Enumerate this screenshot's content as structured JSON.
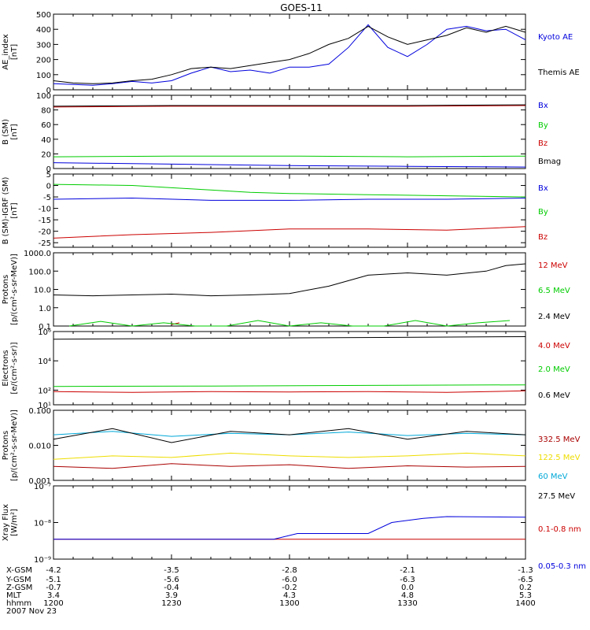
{
  "title": "GOES-11",
  "chart_data": [
    {
      "id": "ae",
      "type": "line",
      "ylabel": [
        "AE_index",
        "[nT]"
      ],
      "scale": "linear",
      "ylim": [
        0,
        500
      ],
      "yticks": [
        0,
        100,
        200,
        300,
        400,
        500
      ],
      "tick_labels": [
        "0",
        "100",
        "200",
        "300",
        "400",
        "500"
      ],
      "series": [
        {
          "name": "Kyoto AE",
          "color": "#0000dd",
          "x": [
            0,
            5,
            10,
            15,
            20,
            25,
            30,
            35,
            40,
            45,
            50,
            55,
            60,
            65,
            70,
            75,
            80,
            85,
            90,
            95,
            100,
            105,
            110,
            115,
            120
          ],
          "y": [
            40,
            35,
            30,
            40,
            55,
            45,
            60,
            110,
            150,
            120,
            130,
            110,
            150,
            150,
            170,
            280,
            430,
            280,
            220,
            300,
            400,
            420,
            390,
            400,
            330
          ]
        },
        {
          "name": "Themis AE",
          "color": "#000000",
          "x": [
            0,
            5,
            10,
            15,
            20,
            25,
            30,
            35,
            40,
            45,
            50,
            55,
            60,
            65,
            70,
            75,
            80,
            85,
            90,
            95,
            100,
            105,
            110,
            115,
            120
          ],
          "y": [
            60,
            45,
            40,
            45,
            60,
            70,
            100,
            140,
            150,
            140,
            160,
            180,
            200,
            240,
            300,
            340,
            420,
            350,
            300,
            330,
            360,
            410,
            380,
            420,
            380
          ]
        }
      ]
    },
    {
      "id": "bsm",
      "type": "line",
      "ylabel": [
        "B (SM)",
        "[nT]"
      ],
      "scale": "linear",
      "ylim": [
        0,
        100
      ],
      "yticks": [
        0,
        20,
        40,
        60,
        80,
        100
      ],
      "tick_labels": [
        "0",
        "20",
        "40",
        "60",
        "80",
        "100"
      ],
      "series": [
        {
          "name": "Bx",
          "color": "#0000dd",
          "x": [
            0,
            30,
            60,
            90,
            120
          ],
          "y": [
            8,
            6,
            4,
            3,
            2
          ]
        },
        {
          "name": "By",
          "color": "#00cc00",
          "x": [
            0,
            30,
            60,
            90,
            120
          ],
          "y": [
            16,
            17,
            17,
            16,
            17
          ]
        },
        {
          "name": "Bz",
          "color": "#cc0000",
          "x": [
            0,
            30,
            60,
            90,
            120
          ],
          "y": [
            84,
            85,
            85,
            85,
            86
          ]
        },
        {
          "name": "Bmag",
          "color": "#000000",
          "x": [
            0,
            30,
            60,
            90,
            120
          ],
          "y": [
            85,
            86,
            86,
            86,
            87
          ]
        }
      ]
    },
    {
      "id": "bdiff",
      "type": "line",
      "ylabel": [
        "B (SM)-IGRF (SM)",
        "[nT]"
      ],
      "scale": "linear",
      "ylim": [
        -27,
        5
      ],
      "yticks": [
        -25,
        -20,
        -15,
        -10,
        -5,
        0,
        5
      ],
      "tick_labels": [
        "-25",
        "-20",
        "-15",
        "-10",
        "-5",
        "0",
        "5"
      ],
      "series": [
        {
          "name": "Bx",
          "color": "#0000dd",
          "x": [
            0,
            20,
            40,
            60,
            80,
            100,
            120
          ],
          "y": [
            -6,
            -5.5,
            -6.5,
            -6.5,
            -6,
            -6,
            -5.5
          ]
        },
        {
          "name": "By",
          "color": "#00cc00",
          "x": [
            0,
            20,
            40,
            50,
            60,
            80,
            100,
            120
          ],
          "y": [
            0.5,
            0,
            -2,
            -3,
            -3.5,
            -4,
            -4.5,
            -5
          ]
        },
        {
          "name": "Bz",
          "color": "#cc0000",
          "x": [
            0,
            20,
            40,
            60,
            80,
            100,
            120
          ],
          "y": [
            -23,
            -21.5,
            -20.5,
            -19,
            -19,
            -19.5,
            -18
          ]
        }
      ]
    },
    {
      "id": "protons_hi",
      "type": "line",
      "ylabel": [
        "Protons",
        "[p/(cm²-s-sr-MeV)]"
      ],
      "scale": "log",
      "ylim": [
        0.1,
        1000
      ],
      "yticks": [
        0.1,
        1,
        10,
        100,
        1000
      ],
      "tick_labels": [
        "0.1",
        "1.0",
        "10.0",
        "100.0",
        "1000.0"
      ],
      "series": [
        {
          "name": "12 MeV",
          "color": "#cc0000",
          "x": [
            30,
            32
          ],
          "y": [
            0.12,
            0.15
          ]
        },
        {
          "name": "6.5 MeV",
          "color": "#00cc00",
          "x": [
            4,
            12,
            20,
            28,
            36,
            44,
            52,
            60,
            68,
            76,
            84,
            92,
            100,
            108,
            116
          ],
          "y": [
            0.1,
            0.18,
            0.1,
            0.15,
            0.1,
            0.1,
            0.2,
            0.1,
            0.15,
            0.1,
            0.1,
            0.2,
            0.1,
            0.15,
            0.2
          ]
        },
        {
          "name": "2.4 MeV",
          "color": "#000000",
          "x": [
            0,
            10,
            20,
            30,
            40,
            50,
            60,
            70,
            75,
            80,
            90,
            100,
            110,
            115,
            120
          ],
          "y": [
            5,
            4.5,
            5,
            5.5,
            4.5,
            5,
            6,
            15,
            30,
            60,
            80,
            60,
            100,
            200,
            250
          ]
        }
      ]
    },
    {
      "id": "electrons",
      "type": "line",
      "ylabel": [
        "Electrons",
        "[e/(cm²-s-sr)]"
      ],
      "scale": "log",
      "ylim": [
        10,
        1000000
      ],
      "yticks": [
        10,
        100,
        10000,
        1000000
      ],
      "tick_labels": [
        "10¹",
        "10²",
        "10⁴",
        "10⁶"
      ],
      "series": [
        {
          "name": "4.0 MeV",
          "color": "#cc0000",
          "x": [
            0,
            20,
            40,
            60,
            80,
            100,
            120
          ],
          "y": [
            80,
            70,
            80,
            75,
            80,
            70,
            90
          ]
        },
        {
          "name": "2.0 MeV",
          "color": "#00cc00",
          "x": [
            0,
            40,
            80,
            120
          ],
          "y": [
            180,
            190,
            210,
            230
          ]
        },
        {
          "name": "0.6 MeV",
          "color": "#000000",
          "x": [
            0,
            120
          ],
          "y": [
            300000,
            450000
          ]
        }
      ]
    },
    {
      "id": "protons_lo",
      "type": "line",
      "ylabel": [
        "Protons",
        "[p/(cm²-s-sr-MeV)]"
      ],
      "scale": "log",
      "ylim": [
        0.001,
        0.1
      ],
      "yticks": [
        0.001,
        0.01,
        0.1
      ],
      "tick_labels": [
        "0.001",
        "0.010",
        "0.100"
      ],
      "series": [
        {
          "name": "332.5 MeV",
          "color": "#aa0000",
          "x": [
            0,
            15,
            30,
            45,
            60,
            75,
            90,
            105,
            120
          ],
          "y": [
            0.0025,
            0.0022,
            0.003,
            0.0025,
            0.0028,
            0.0022,
            0.0026,
            0.0024,
            0.0025
          ]
        },
        {
          "name": "122.5 MeV",
          "color": "#eedd00",
          "x": [
            0,
            15,
            30,
            45,
            60,
            75,
            90,
            105,
            120
          ],
          "y": [
            0.004,
            0.005,
            0.0045,
            0.006,
            0.005,
            0.0045,
            0.005,
            0.006,
            0.005
          ]
        },
        {
          "name": "60 MeV",
          "color": "#00a8d8",
          "x": [
            0,
            15,
            30,
            45,
            60,
            75,
            90,
            105,
            120
          ],
          "y": [
            0.02,
            0.025,
            0.018,
            0.022,
            0.02,
            0.024,
            0.019,
            0.022,
            0.02
          ]
        },
        {
          "name": "27.5 MeV",
          "color": "#000000",
          "x": [
            0,
            15,
            30,
            45,
            60,
            75,
            90,
            105,
            120
          ],
          "y": [
            0.015,
            0.03,
            0.012,
            0.025,
            0.02,
            0.03,
            0.015,
            0.025,
            0.02
          ]
        }
      ]
    },
    {
      "id": "xray",
      "type": "line",
      "ylabel": [
        "Xray Flux",
        "[W/m²]"
      ],
      "scale": "log",
      "ylim": [
        1e-09,
        1e-07
      ],
      "yticks": [
        1e-09,
        1e-08,
        1e-07
      ],
      "tick_labels": [
        "10⁻⁹",
        "10⁻⁸",
        "10⁻⁷"
      ],
      "series": [
        {
          "name": "0.1-0.8 nm",
          "color": "#cc0000",
          "x": [
            0,
            120
          ],
          "y": [
            3.5e-09,
            3.5e-09
          ]
        },
        {
          "name": "0.05-0.3 nm",
          "color": "#0000dd",
          "x": [
            0,
            56,
            62,
            80,
            86,
            94,
            100,
            120
          ],
          "y": [
            3.5e-09,
            3.5e-09,
            5e-09,
            5e-09,
            1e-08,
            1.3e-08,
            1.45e-08,
            1.4e-08
          ]
        }
      ]
    }
  ],
  "x_axis": {
    "range": [
      0,
      120
    ],
    "tick_minutes": [
      0,
      30,
      60,
      90,
      120
    ],
    "rows": [
      {
        "label": "X-GSM",
        "values": [
          "-4.2",
          "-3.5",
          "-2.8",
          "-2.1",
          "-1.3"
        ]
      },
      {
        "label": "Y-GSM",
        "values": [
          "-5.1",
          "-5.6",
          "-6.0",
          "-6.3",
          "-6.5"
        ]
      },
      {
        "label": "Z-GSM",
        "values": [
          "-0.7",
          "-0.4",
          "-0.2",
          "0.0",
          "0.2"
        ]
      },
      {
        "label": "MLT",
        "values": [
          "3.4",
          "3.9",
          "4.3",
          "4.8",
          "5.3"
        ]
      },
      {
        "label": "hhmm",
        "values": [
          "1200",
          "1230",
          "1300",
          "1330",
          "1400"
        ]
      }
    ],
    "date": "2007 Nov 23"
  }
}
